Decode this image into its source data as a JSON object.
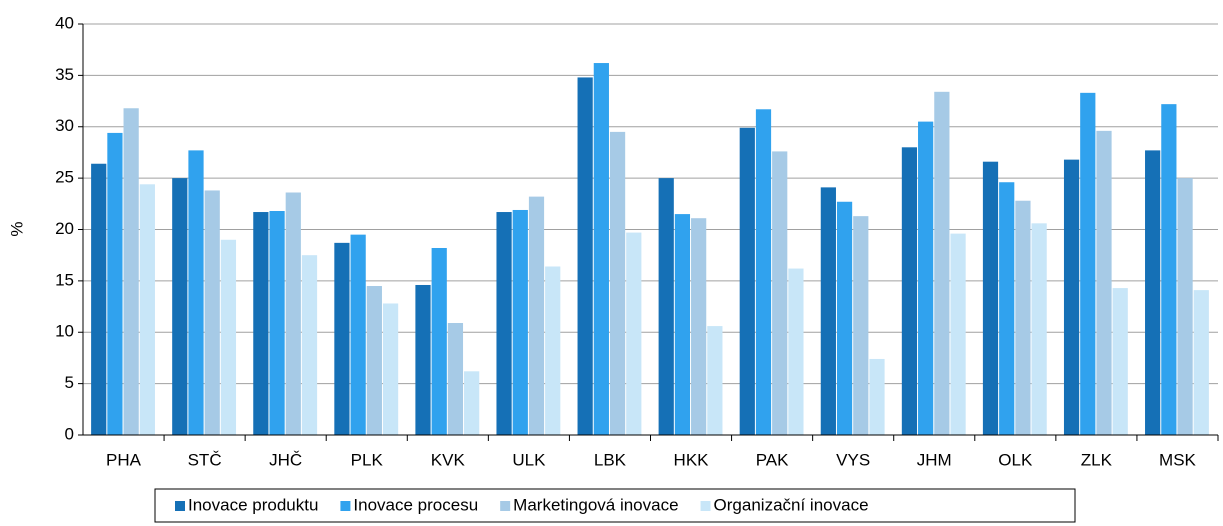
{
  "chart_data": {
    "type": "bar",
    "y_label": "%",
    "categories": [
      "PHA",
      "STČ",
      "JHČ",
      "PLK",
      "KVK",
      "ULK",
      "LBK",
      "HKK",
      "PAK",
      "VYS",
      "JHM",
      "OLK",
      "ZLK",
      "MSK"
    ],
    "series": [
      {
        "name": "Inovace produktu",
        "color": "#1570b6",
        "values": [
          26.4,
          25.0,
          21.7,
          18.7,
          14.6,
          21.7,
          34.8,
          25.0,
          29.9,
          24.1,
          28.0,
          26.6,
          26.8,
          27.7
        ]
      },
      {
        "name": "Inovace procesu",
        "color": "#30a2ee",
        "values": [
          29.4,
          27.7,
          21.8,
          19.5,
          18.2,
          21.9,
          36.2,
          21.5,
          31.7,
          22.7,
          30.5,
          24.6,
          33.3,
          32.2
        ]
      },
      {
        "name": "Marketingová inovace",
        "color": "#a6cae6",
        "values": [
          31.8,
          23.8,
          23.6,
          14.5,
          10.9,
          23.2,
          29.5,
          21.1,
          27.6,
          21.3,
          33.4,
          22.8,
          29.6,
          25.0
        ]
      },
      {
        "name": "Organizační inovace",
        "color": "#c8e6f8",
        "values": [
          24.4,
          19.0,
          17.5,
          12.8,
          6.2,
          16.4,
          19.7,
          10.6,
          16.2,
          7.4,
          19.6,
          20.6,
          14.3,
          14.1
        ]
      }
    ],
    "ylim": [
      0,
      40
    ],
    "yticks": [
      0,
      5,
      10,
      15,
      20,
      25,
      30,
      35,
      40
    ],
    "grid": true,
    "legend": "bottom"
  }
}
